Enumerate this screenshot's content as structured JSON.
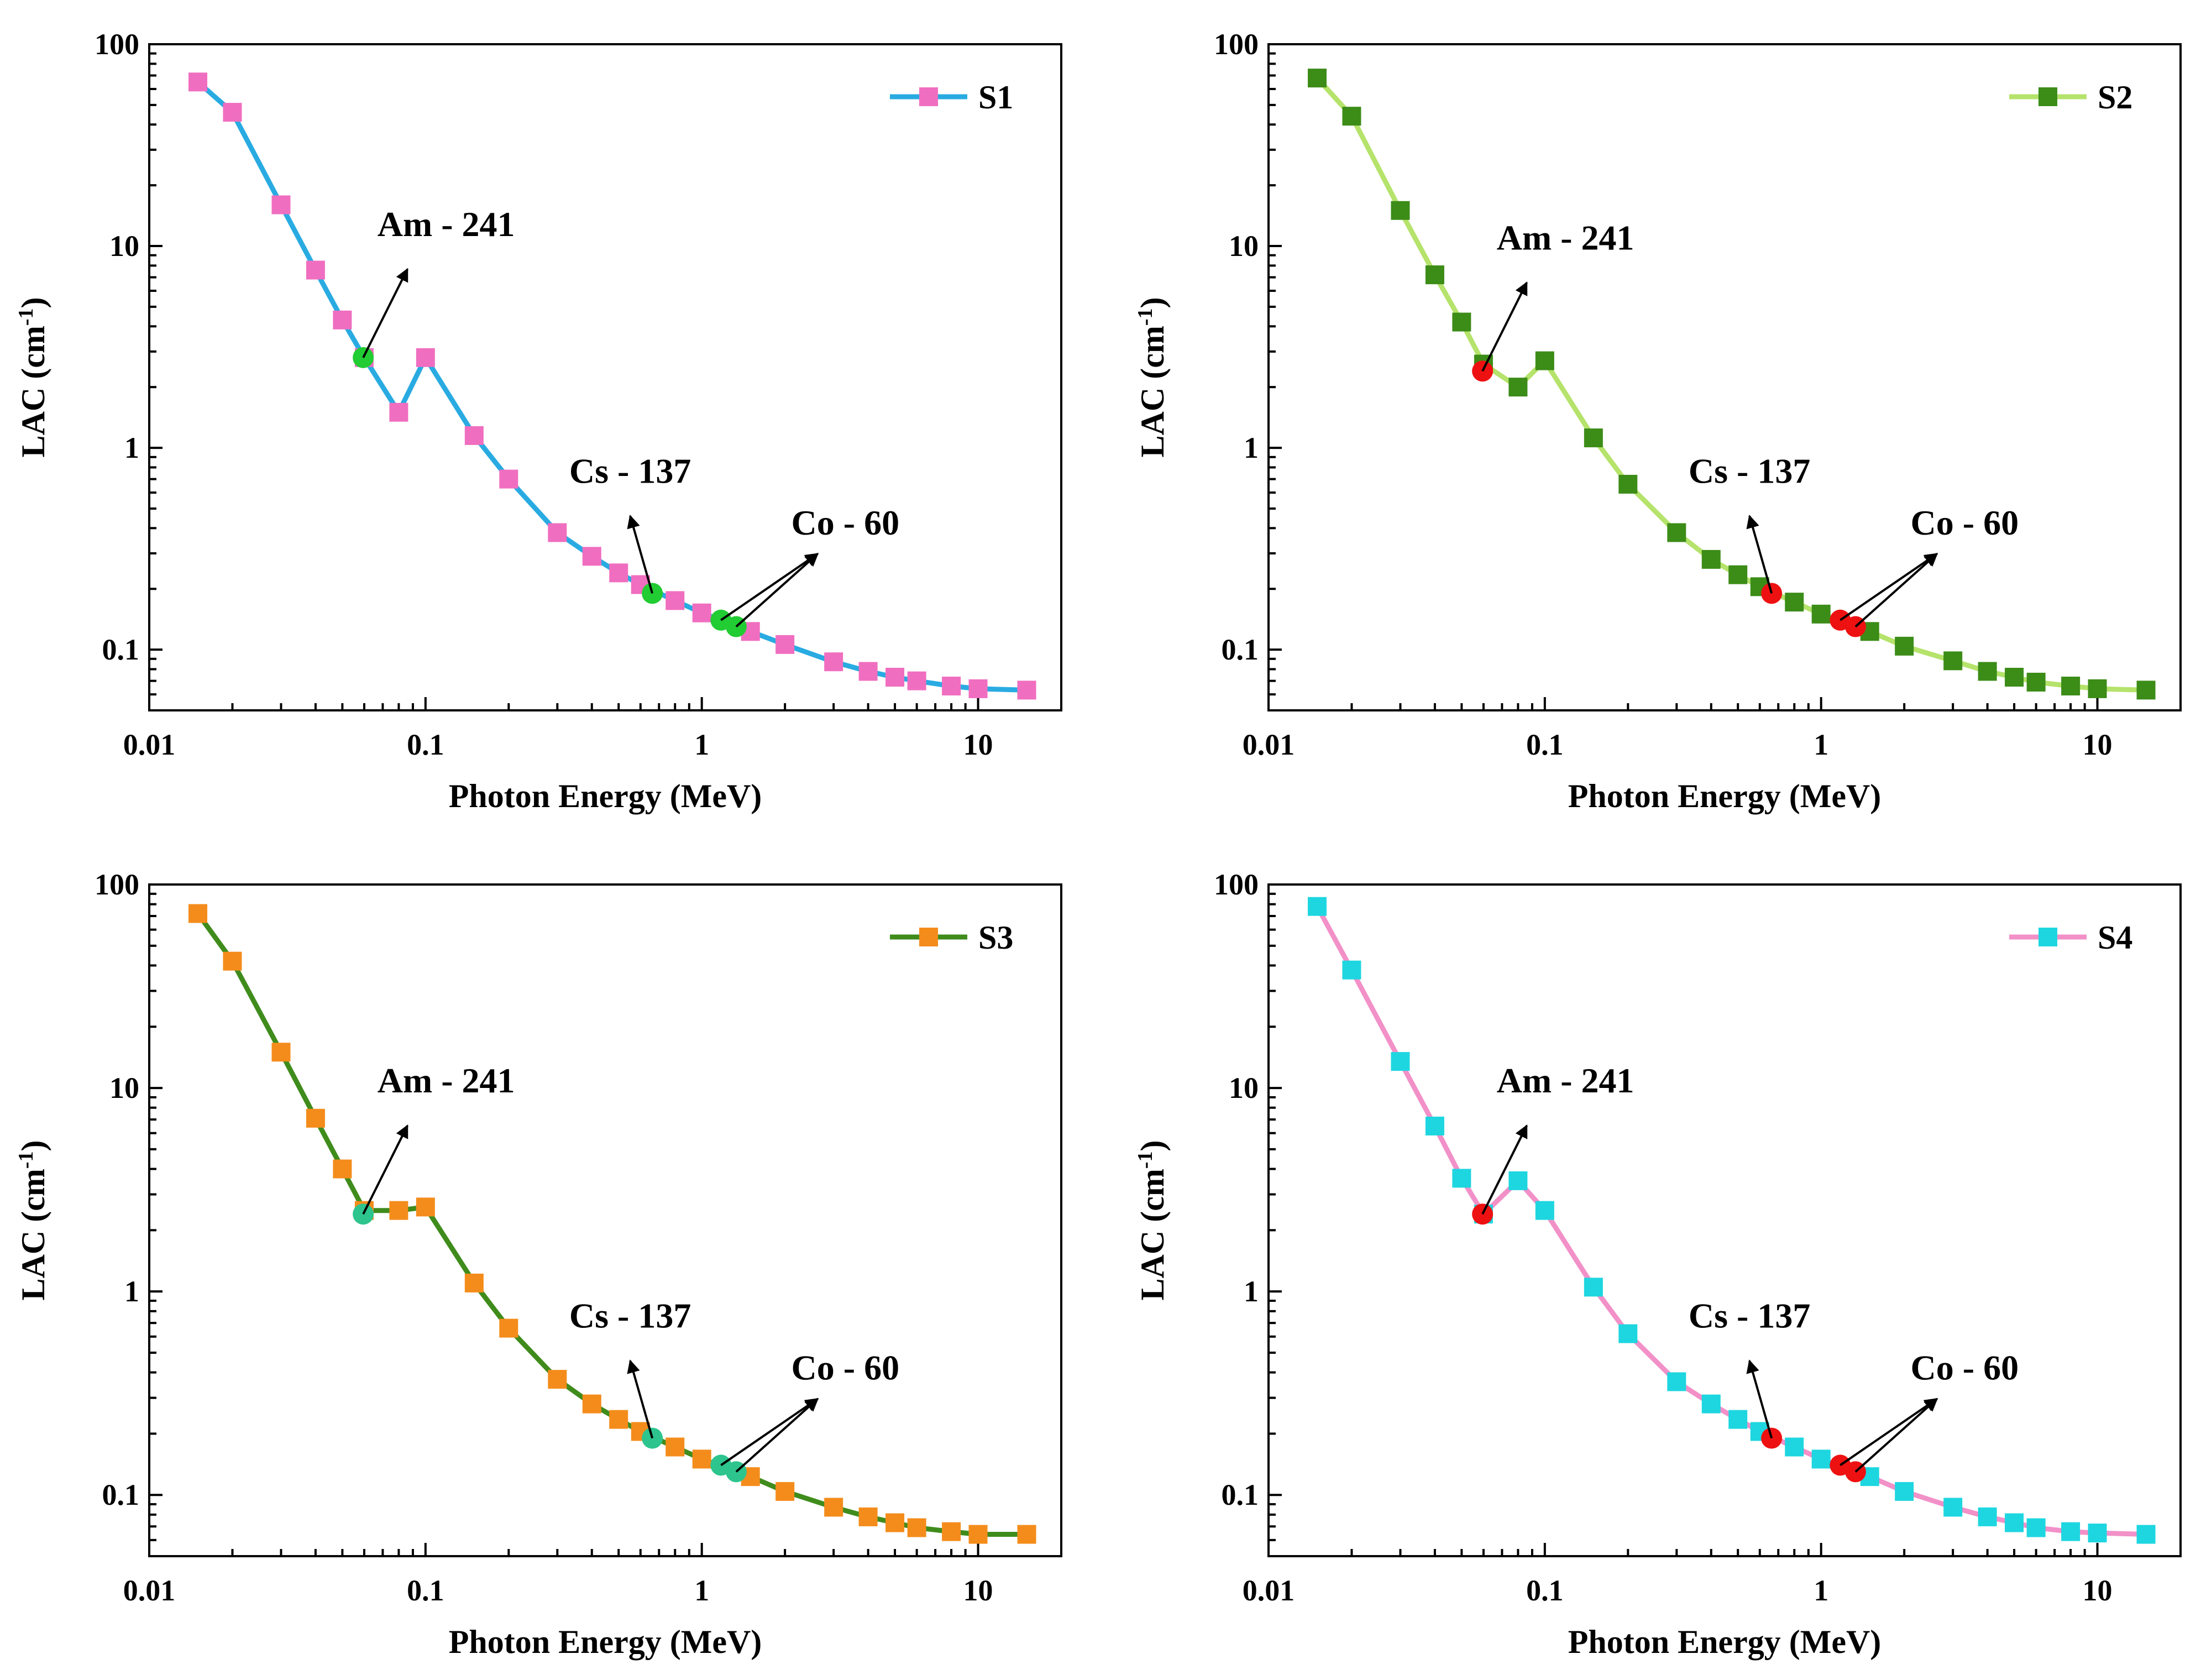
{
  "x_ticks": [
    {
      "value": 0.01,
      "label": "0.01"
    },
    {
      "value": 0.1,
      "label": "0.1"
    },
    {
      "value": 1,
      "label": "1"
    },
    {
      "value": 10,
      "label": "10"
    }
  ],
  "y_ticks": [
    {
      "value": 0.1,
      "label": "0.1"
    },
    {
      "value": 1,
      "label": "1"
    },
    {
      "value": 10,
      "label": "10"
    },
    {
      "value": 100,
      "label": "100"
    }
  ],
  "source_labels": {
    "am": "Am - 241",
    "cs": "Cs - 137",
    "co": "Co - 60"
  },
  "chart_data": [
    {
      "type": "line",
      "title": "",
      "xlabel": "Photon Energy (MeV)",
      "ylabel": "LAC (cm",
      "ylabel_sup": "-1",
      "ylabel_close": ")",
      "xscale": "log",
      "yscale": "log",
      "xlim": [
        0.01,
        20
      ],
      "ylim": [
        0.05,
        100
      ],
      "legend_position": "top-right",
      "series": [
        {
          "name": "S1",
          "line_color": "#29abe2",
          "marker_color": "#f06ec0",
          "x": [
            0.015,
            0.02,
            0.03,
            0.04,
            0.05,
            0.06,
            0.08,
            0.1,
            0.15,
            0.2,
            0.3,
            0.4,
            0.5,
            0.6,
            0.8,
            1,
            1.5,
            2,
            3,
            4,
            5,
            6,
            8,
            10,
            15
          ],
          "y": [
            65,
            46,
            16,
            7.6,
            4.3,
            2.8,
            1.5,
            2.8,
            1.15,
            0.7,
            0.38,
            0.29,
            0.24,
            0.21,
            0.175,
            0.152,
            0.123,
            0.106,
            0.087,
            0.078,
            0.073,
            0.07,
            0.066,
            0.064,
            0.063
          ]
        }
      ],
      "special_points": {
        "color": "#22cc33",
        "points": [
          {
            "source": "am",
            "x": 0.0595,
            "y": 2.8
          },
          {
            "source": "cs",
            "x": 0.662,
            "y": 0.19
          },
          {
            "source": "co",
            "x": 1.173,
            "y": 0.14
          },
          {
            "source": "co",
            "x": 1.332,
            "y": 0.13
          }
        ]
      }
    },
    {
      "type": "line",
      "title": "",
      "xlabel": "Photon Energy (MeV)",
      "ylabel": "LAC (cm",
      "ylabel_sup": "-1",
      "ylabel_close": ")",
      "xscale": "log",
      "yscale": "log",
      "xlim": [
        0.01,
        20
      ],
      "ylim": [
        0.05,
        100
      ],
      "legend_position": "top-right",
      "series": [
        {
          "name": "S2",
          "line_color": "#b5e36b",
          "marker_color": "#3c8c18",
          "x": [
            0.015,
            0.02,
            0.03,
            0.04,
            0.05,
            0.06,
            0.08,
            0.1,
            0.15,
            0.2,
            0.3,
            0.4,
            0.5,
            0.6,
            0.8,
            1,
            1.5,
            2,
            3,
            4,
            5,
            6,
            8,
            10,
            15
          ],
          "y": [
            68,
            44,
            15,
            7.2,
            4.2,
            2.6,
            2.0,
            2.7,
            1.12,
            0.66,
            0.38,
            0.28,
            0.235,
            0.205,
            0.172,
            0.15,
            0.123,
            0.104,
            0.088,
            0.078,
            0.073,
            0.069,
            0.066,
            0.064,
            0.063
          ]
        }
      ],
      "special_points": {
        "color": "#ee1111",
        "points": [
          {
            "source": "am",
            "x": 0.0595,
            "y": 2.4
          },
          {
            "source": "cs",
            "x": 0.662,
            "y": 0.19
          },
          {
            "source": "co",
            "x": 1.173,
            "y": 0.14
          },
          {
            "source": "co",
            "x": 1.332,
            "y": 0.13
          }
        ]
      }
    },
    {
      "type": "line",
      "title": "",
      "xlabel": "Photon Energy (MeV)",
      "ylabel": "LAC (cm",
      "ylabel_sup": "-1",
      "ylabel_close": ")",
      "xscale": "log",
      "yscale": "log",
      "xlim": [
        0.01,
        20
      ],
      "ylim": [
        0.05,
        100
      ],
      "legend_position": "top-right",
      "series": [
        {
          "name": "S3",
          "line_color": "#3f8c1c",
          "marker_color": "#f48c1c",
          "x": [
            0.015,
            0.02,
            0.03,
            0.04,
            0.05,
            0.06,
            0.08,
            0.1,
            0.15,
            0.2,
            0.3,
            0.4,
            0.5,
            0.6,
            0.8,
            1,
            1.5,
            2,
            3,
            4,
            5,
            6,
            8,
            10,
            15
          ],
          "y": [
            72,
            42,
            15,
            7.1,
            4.0,
            2.5,
            2.5,
            2.6,
            1.1,
            0.66,
            0.37,
            0.28,
            0.235,
            0.205,
            0.172,
            0.15,
            0.123,
            0.104,
            0.087,
            0.078,
            0.073,
            0.069,
            0.066,
            0.064,
            0.064
          ]
        }
      ],
      "special_points": {
        "color": "#2dc48d",
        "points": [
          {
            "source": "am",
            "x": 0.0595,
            "y": 2.4
          },
          {
            "source": "cs",
            "x": 0.662,
            "y": 0.19
          },
          {
            "source": "co",
            "x": 1.173,
            "y": 0.14
          },
          {
            "source": "co",
            "x": 1.332,
            "y": 0.13
          }
        ]
      }
    },
    {
      "type": "line",
      "title": "",
      "xlabel": "Photon Energy (MeV)",
      "ylabel": "LAC (cm",
      "ylabel_sup": "-1",
      "ylabel_close": ")",
      "xscale": "log",
      "yscale": "log",
      "xlim": [
        0.01,
        20
      ],
      "ylim": [
        0.05,
        100
      ],
      "legend_position": "top-right",
      "series": [
        {
          "name": "S4",
          "line_color": "#f290c8",
          "marker_color": "#1ed6e0",
          "x": [
            0.015,
            0.02,
            0.03,
            0.04,
            0.05,
            0.06,
            0.08,
            0.1,
            0.15,
            0.2,
            0.3,
            0.4,
            0.5,
            0.6,
            0.8,
            1,
            1.5,
            2,
            3,
            4,
            5,
            6,
            8,
            10,
            15
          ],
          "y": [
            78,
            38,
            13.5,
            6.5,
            3.6,
            2.4,
            3.5,
            2.5,
            1.05,
            0.62,
            0.36,
            0.28,
            0.235,
            0.205,
            0.172,
            0.15,
            0.123,
            0.104,
            0.087,
            0.078,
            0.073,
            0.069,
            0.066,
            0.065,
            0.064
          ]
        }
      ],
      "special_points": {
        "color": "#ee1111",
        "points": [
          {
            "source": "am",
            "x": 0.0595,
            "y": 2.4
          },
          {
            "source": "cs",
            "x": 0.662,
            "y": 0.19
          },
          {
            "source": "co",
            "x": 1.173,
            "y": 0.14
          },
          {
            "source": "co",
            "x": 1.332,
            "y": 0.13
          }
        ]
      }
    }
  ]
}
